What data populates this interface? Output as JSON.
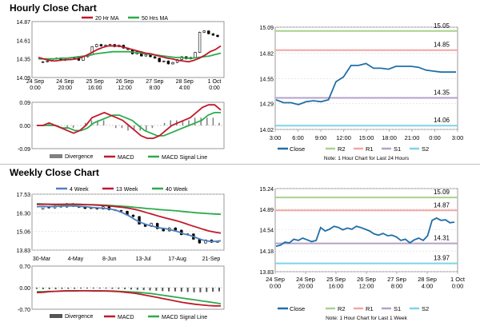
{
  "sections": {
    "hourly": {
      "title": "Hourly Close Chart"
    },
    "weekly": {
      "title": "Weekly Close Chart"
    }
  },
  "chart_data": [
    {
      "id": "hourly-price",
      "type": "candlestick-line",
      "legend": [
        "20 Hr MA",
        "50 Hrs MA"
      ],
      "y_ticks": [
        "14.87",
        "14.61",
        "14.35",
        "14.09"
      ],
      "x_ticks": [
        "24 Sep\n0:00",
        "24 Sep\n20:00",
        "25 Sep\n16:00",
        "26 Sep\n12:00",
        "27 Sep\n8:00",
        "28 Sep\n4:00",
        "1 Oct\n0:00"
      ],
      "ylim": [
        14.09,
        14.87
      ],
      "close": [
        14.3,
        14.31,
        14.32,
        14.35,
        14.36,
        14.33,
        14.34,
        14.36,
        14.37,
        14.33,
        14.38,
        14.41,
        14.52,
        14.55,
        14.53,
        14.54,
        14.55,
        14.52,
        14.54,
        14.5,
        14.48,
        14.42,
        14.45,
        14.39,
        14.41,
        14.38,
        14.36,
        14.31,
        14.32,
        14.28,
        14.3,
        14.34,
        14.38,
        14.35,
        14.37,
        14.44,
        14.72,
        14.74,
        14.7,
        14.68,
        14.66
      ],
      "ma20": [
        14.37,
        14.35,
        14.33,
        14.32,
        14.33,
        14.34,
        14.34,
        14.35,
        14.37,
        14.4,
        14.44,
        14.48,
        14.51,
        14.53,
        14.53,
        14.53,
        14.51,
        14.49,
        14.47,
        14.45,
        14.43,
        14.42,
        14.4,
        14.38,
        14.36,
        14.35,
        14.33,
        14.32,
        14.31,
        14.33,
        14.36,
        14.4,
        14.45,
        14.48,
        14.53
      ],
      "ma50": [
        14.35,
        14.35,
        14.35,
        14.35,
        14.36,
        14.36,
        14.37,
        14.38,
        14.39,
        14.4,
        14.42,
        14.43,
        14.44,
        14.45,
        14.45,
        14.45,
        14.45,
        14.44,
        14.43,
        14.42,
        14.41,
        14.4,
        14.39,
        14.38,
        14.37,
        14.37,
        14.36,
        14.36,
        14.37,
        14.38,
        14.39,
        14.41,
        14.43
      ],
      "colors": {
        "ma20": "#c0192c",
        "ma50": "#2dab4d",
        "price": "#000000"
      }
    },
    {
      "id": "hourly-macd",
      "type": "macd",
      "legend": [
        "Divergence",
        "MACD",
        "MACD Signal Line"
      ],
      "y_ticks": [
        "0.09",
        "0.00",
        "-0.09"
      ],
      "ylim": [
        -0.09,
        0.09
      ],
      "macd": [
        0.0,
        0.0,
        0.01,
        0.0,
        -0.01,
        -0.02,
        -0.03,
        -0.02,
        0.0,
        0.03,
        0.04,
        0.05,
        0.04,
        0.03,
        0.02,
        0.0,
        -0.02,
        -0.04,
        -0.05,
        -0.05,
        -0.04,
        -0.02,
        0.0,
        0.01,
        0.02,
        0.03,
        0.05,
        0.07,
        0.08,
        0.08,
        0.06
      ],
      "signal": [
        0.0,
        0.0,
        0.0,
        0.0,
        -0.01,
        -0.01,
        -0.02,
        -0.02,
        -0.01,
        0.01,
        0.02,
        0.03,
        0.04,
        0.04,
        0.03,
        0.02,
        0.0,
        -0.02,
        -0.03,
        -0.04,
        -0.04,
        -0.03,
        -0.02,
        -0.01,
        0.0,
        0.01,
        0.02,
        0.04,
        0.05,
        0.05
      ],
      "divergence": [
        0.0,
        0.0,
        0.01,
        0.0,
        0.0,
        -0.01,
        -0.01,
        0.0,
        0.01,
        0.02,
        0.02,
        0.02,
        0.0,
        -0.01,
        -0.01,
        -0.02,
        -0.02,
        -0.02,
        -0.02,
        -0.01,
        0.0,
        0.01,
        0.02,
        0.02,
        0.02,
        0.02,
        0.03,
        0.03,
        0.03,
        0.03,
        0.01
      ],
      "colors": {
        "macd": "#c0192c",
        "signal": "#2dab4d",
        "divergence": "#808080"
      }
    },
    {
      "id": "hourly-24h",
      "type": "line",
      "levels": {
        "R2": 15.05,
        "R1": 14.85,
        "S1": 14.35,
        "S2": 14.06
      },
      "level_labels": {
        "R2": "15.05",
        "R1": "14.85",
        "S1": "14.35",
        "S2": "14.06"
      },
      "y_ticks": [
        "15.09",
        "14.82",
        "14.55",
        "14.29",
        "14.02"
      ],
      "ylim": [
        14.02,
        15.09
      ],
      "x_ticks": [
        "3:00",
        "6:00",
        "9:00",
        "12:00",
        "15:00",
        "18:00",
        "21:00",
        "0:00",
        "3:00"
      ],
      "x": [
        0,
        1,
        2,
        3,
        4,
        5,
        6,
        7,
        8,
        9,
        10,
        11,
        12,
        13,
        14,
        15,
        16,
        17,
        18,
        19,
        20,
        21,
        22,
        23,
        24
      ],
      "values": [
        14.33,
        14.3,
        14.3,
        14.28,
        14.31,
        14.32,
        14.31,
        14.33,
        14.52,
        14.57,
        14.69,
        14.69,
        14.71,
        14.66,
        14.66,
        14.65,
        14.68,
        14.68,
        14.68,
        14.67,
        14.64,
        14.63,
        14.62,
        14.62,
        14.62
      ],
      "legend": [
        "Close",
        "R2",
        "R1",
        "S1",
        "S2"
      ],
      "note": "Note: 1 Hour Chart for Last 24 Hours",
      "colors": {
        "close": "#1f6fa8",
        "R2": "#a9d18e",
        "R1": "#f4a6a6",
        "S1": "#b5a2c8",
        "S2": "#7fd3e8"
      }
    },
    {
      "id": "weekly-price",
      "type": "candlestick-line",
      "legend": [
        "4 Week",
        "13 Week",
        "40 Week"
      ],
      "y_ticks": [
        "17.53",
        "16.30",
        "15.06",
        "13.83"
      ],
      "ylim": [
        13.83,
        17.53
      ],
      "x_ticks": [
        "30-Mar",
        "4-May",
        "8-Jun",
        "13-Jul",
        "17-Aug",
        "21-Sep"
      ],
      "close": [
        16.55,
        16.7,
        16.62,
        16.75,
        16.68,
        16.9,
        16.72,
        16.66,
        16.58,
        16.62,
        16.55,
        16.7,
        16.5,
        16.45,
        16.4,
        16.15,
        16.05,
        15.55,
        15.4,
        15.6,
        15.25,
        15.1,
        15.3,
        15.15,
        14.85,
        14.9,
        14.55,
        14.3,
        14.5,
        14.35,
        14.4
      ],
      "w4": [
        16.7,
        16.72,
        16.7,
        16.72,
        16.73,
        16.76,
        16.75,
        16.72,
        16.7,
        16.65,
        16.62,
        16.6,
        16.55,
        16.45,
        16.3,
        16.1,
        15.85,
        15.65,
        15.5,
        15.4,
        15.3,
        15.25,
        15.15,
        15.05,
        14.9,
        14.8,
        14.65,
        14.5,
        14.42,
        14.4,
        14.45
      ],
      "w13": [
        16.85,
        16.86,
        16.86,
        16.86,
        16.86,
        16.87,
        16.87,
        16.86,
        16.84,
        16.82,
        16.8,
        16.78,
        16.74,
        16.7,
        16.66,
        16.6,
        16.52,
        16.42,
        16.3,
        16.18,
        16.06,
        15.95,
        15.85,
        15.75,
        15.62,
        15.48,
        15.35,
        15.22,
        15.1,
        15.02,
        14.95
      ],
      "w40": [
        16.9,
        16.88,
        16.86,
        16.84,
        16.82,
        16.82,
        16.83,
        16.84,
        16.84,
        16.83,
        16.82,
        16.8,
        16.78,
        16.76,
        16.73,
        16.7,
        16.66,
        16.62,
        16.58,
        16.55,
        16.51,
        16.48,
        16.45,
        16.42,
        16.38,
        16.34,
        16.3,
        16.27,
        16.24,
        16.22,
        16.2
      ],
      "colors": {
        "w4": "#4f81bd",
        "w13": "#c0192c",
        "w40": "#2dab4d",
        "price": "#000000"
      }
    },
    {
      "id": "weekly-macd",
      "type": "macd",
      "legend": [
        "Divergence",
        "MACD",
        "MACD Signal Line"
      ],
      "y_ticks": [
        "0.70",
        "0.00",
        "-0.70"
      ],
      "ylim": [
        -0.7,
        0.7
      ],
      "macd": [
        -0.16,
        -0.15,
        -0.13,
        -0.12,
        -0.11,
        -0.1,
        -0.1,
        -0.1,
        -0.1,
        -0.11,
        -0.11,
        -0.11,
        -0.12,
        -0.13,
        -0.15,
        -0.17,
        -0.2,
        -0.24,
        -0.28,
        -0.32,
        -0.36,
        -0.4,
        -0.44,
        -0.48,
        -0.51,
        -0.54,
        -0.56,
        -0.58,
        -0.59,
        -0.59
      ],
      "signal": [
        -0.13,
        -0.13,
        -0.12,
        -0.12,
        -0.11,
        -0.11,
        -0.11,
        -0.1,
        -0.1,
        -0.1,
        -0.1,
        -0.11,
        -0.11,
        -0.12,
        -0.13,
        -0.14,
        -0.15,
        -0.17,
        -0.19,
        -0.22,
        -0.25,
        -0.28,
        -0.31,
        -0.34,
        -0.37,
        -0.4,
        -0.43,
        -0.46,
        -0.49,
        -0.52
      ],
      "divergence": [
        -0.04,
        -0.05,
        -0.05,
        -0.05,
        -0.04,
        -0.04,
        -0.04,
        -0.03,
        -0.03,
        -0.03,
        -0.03,
        -0.03,
        -0.04,
        -0.04,
        -0.05,
        -0.06,
        -0.07,
        -0.08,
        -0.09,
        -0.1,
        -0.11,
        -0.12,
        -0.12,
        -0.13,
        -0.14,
        -0.15,
        -0.15,
        -0.14,
        -0.13,
        -0.12
      ],
      "colors": {
        "macd": "#c0192c",
        "signal": "#2dab4d",
        "divergence": "#555555"
      }
    },
    {
      "id": "weekly-1w",
      "type": "line",
      "levels": {
        "R2": 15.09,
        "R1": 14.87,
        "S1": 14.31,
        "S2": 13.97
      },
      "level_labels": {
        "R2": "15.09",
        "R1": "14.87",
        "S1": "14.31",
        "S2": "13.97"
      },
      "y_ticks": [
        "15.24",
        "14.89",
        "14.54",
        "14.18",
        "13.83"
      ],
      "ylim": [
        13.83,
        15.24
      ],
      "x_ticks": [
        "24 Sep\n0:00",
        "24 Sep\n20:00",
        "25 Sep\n16:00",
        "26 Sep\n12:00",
        "27 Sep\n8:00",
        "28 Sep\n4:00",
        "1 Oct\n0:00"
      ],
      "values": [
        14.26,
        14.28,
        14.33,
        14.32,
        14.38,
        14.36,
        14.4,
        14.37,
        14.34,
        14.36,
        14.58,
        14.52,
        14.55,
        14.6,
        14.58,
        14.54,
        14.57,
        14.55,
        14.6,
        14.58,
        14.55,
        14.52,
        14.47,
        14.45,
        14.48,
        14.44,
        14.45,
        14.42,
        14.36,
        14.38,
        14.32,
        14.37,
        14.4,
        14.36,
        14.44,
        14.7,
        14.74,
        14.7,
        14.71,
        14.66,
        14.67
      ],
      "legend": [
        "Close",
        "R2",
        "R1",
        "S1",
        "S2"
      ],
      "note": "Note: 1 Hour Chart for Last 1 Week",
      "colors": {
        "close": "#1f6fa8",
        "R2": "#a9d18e",
        "R1": "#f4a6a6",
        "S1": "#b5a2c8",
        "S2": "#7fd3e8"
      }
    }
  ]
}
